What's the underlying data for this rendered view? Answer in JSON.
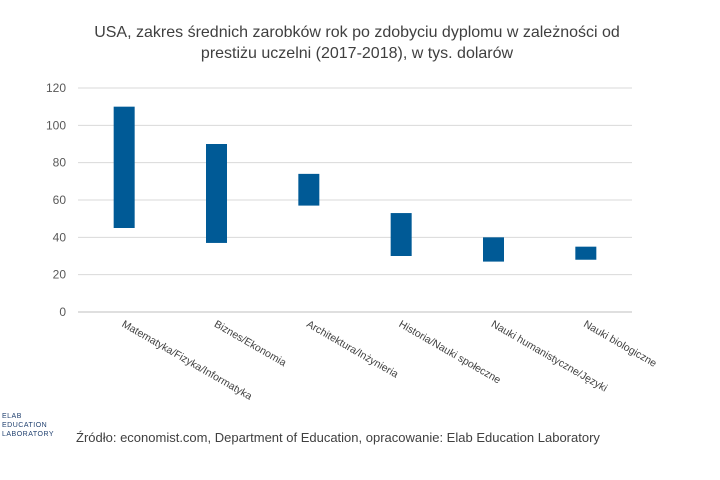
{
  "chart_data": {
    "type": "bar",
    "title_line1": "USA, zakres średnich zarobków rok po zdobyciu dyplomu w zależności od",
    "title_line2": "prestiżu uczelni (2017-2018), w tys. dolarów",
    "categories": [
      "Matematyka/Fizyka/Informatyka",
      "Biznes/Ekonomia",
      "Architektura/Inżynieria",
      "Historia/Nauki społeczne",
      "Nauki humanistyczne/Języki",
      "Nauki biologiczne"
    ],
    "ranges": [
      {
        "low": 45,
        "high": 110
      },
      {
        "low": 37,
        "high": 90
      },
      {
        "low": 57,
        "high": 74
      },
      {
        "low": 30,
        "high": 53
      },
      {
        "low": 27,
        "high": 40
      },
      {
        "low": 28,
        "high": 35
      }
    ],
    "ylim": [
      0,
      120
    ],
    "yticks": [
      0,
      20,
      40,
      60,
      80,
      100,
      120
    ],
    "grid": true,
    "bar_color": "#005a96",
    "grid_color": "#d9d9d9"
  },
  "source": "Źródło: economist.com, Department of Education, opracowanie: Elab Education Laboratory",
  "logo": {
    "line1": "ELAB",
    "line2": "EDUCATION",
    "line3": "LABORATORY"
  }
}
